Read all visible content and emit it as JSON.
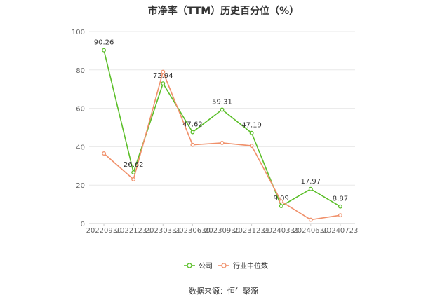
{
  "chart_data": {
    "type": "line",
    "title": "市净率（TTM）历史百分位（%）",
    "x": [
      "20220930",
      "20221231",
      "20230331",
      "20230630",
      "20230930",
      "20231231",
      "20240331",
      "20240630",
      "20240723"
    ],
    "series": [
      {
        "name": "公司",
        "color": "#5cbf2a",
        "values": [
          90.26,
          26.62,
          72.94,
          47.62,
          59.31,
          47.19,
          9.09,
          17.97,
          8.87
        ],
        "labels": [
          "90.26",
          "26.62",
          "72.94",
          "47.62",
          "59.31",
          "47.19",
          "9.09",
          "17.97",
          "8.87"
        ]
      },
      {
        "name": "行业中位数",
        "color": "#f0906a",
        "values": [
          36.5,
          23.0,
          79.0,
          41.0,
          42.0,
          40.5,
          11.5,
          2.0,
          4.3
        ]
      }
    ],
    "ylim": [
      0,
      100
    ],
    "yticks": [
      0,
      20,
      40,
      60,
      80,
      100
    ],
    "grid": true,
    "legend": "bottom",
    "source": "数据来源：恒生聚源"
  }
}
